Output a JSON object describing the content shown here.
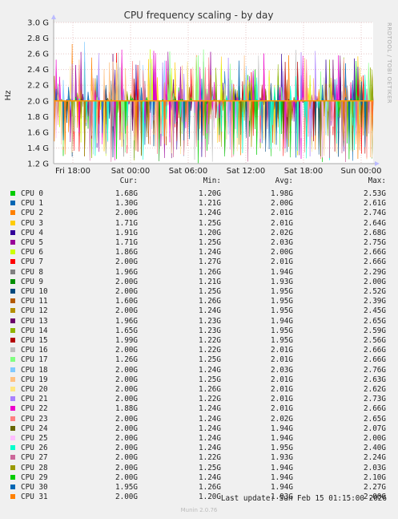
{
  "chart_data": {
    "type": "area",
    "title": "CPU frequency scaling - by day",
    "ylabel": "Hz",
    "yticks": [
      "3.0 G",
      "2.8 G",
      "2.6 G",
      "2.4 G",
      "2.2 G",
      "2.0 G",
      "1.8 G",
      "1.6 G",
      "1.4 G",
      "1.2 G"
    ],
    "ylim": [
      1.2,
      3.0
    ],
    "xticks": [
      "Fri 18:00",
      "Sat 00:00",
      "Sat 06:00",
      "Sat 12:00",
      "Sat 18:00",
      "Sun 00:00"
    ],
    "side_label": "RRDTOOL / TOBI OETIKER",
    "baseline": 2.0,
    "grid": true,
    "legend_header": {
      "cur": "Cur:",
      "min": "Min:",
      "avg": "Avg:",
      "max": "Max:"
    },
    "series": [
      {
        "name": "CPU 0",
        "color": "#00cc00",
        "cur": "1.68G",
        "min": "1.20G",
        "avg": "1.98G",
        "max": "2.53G"
      },
      {
        "name": "CPU 1",
        "color": "#0066b3",
        "cur": "1.30G",
        "min": "1.21G",
        "avg": "2.00G",
        "max": "2.61G"
      },
      {
        "name": "CPU 2",
        "color": "#ff8000",
        "cur": "2.00G",
        "min": "1.24G",
        "avg": "2.01G",
        "max": "2.74G"
      },
      {
        "name": "CPU 3",
        "color": "#ffcc00",
        "cur": "1.71G",
        "min": "1.25G",
        "avg": "2.01G",
        "max": "2.64G"
      },
      {
        "name": "CPU 4",
        "color": "#330099",
        "cur": "1.91G",
        "min": "1.20G",
        "avg": "2.02G",
        "max": "2.68G"
      },
      {
        "name": "CPU 5",
        "color": "#990099",
        "cur": "1.71G",
        "min": "1.25G",
        "avg": "2.03G",
        "max": "2.75G"
      },
      {
        "name": "CPU 6",
        "color": "#ccff00",
        "cur": "1.86G",
        "min": "1.24G",
        "avg": "2.00G",
        "max": "2.66G"
      },
      {
        "name": "CPU 7",
        "color": "#ff0000",
        "cur": "2.00G",
        "min": "1.27G",
        "avg": "2.01G",
        "max": "2.66G"
      },
      {
        "name": "CPU 8",
        "color": "#808080",
        "cur": "1.96G",
        "min": "1.26G",
        "avg": "1.94G",
        "max": "2.29G"
      },
      {
        "name": "CPU 9",
        "color": "#008f00",
        "cur": "2.00G",
        "min": "1.21G",
        "avg": "1.93G",
        "max": "2.00G"
      },
      {
        "name": "CPU 10",
        "color": "#00487d",
        "cur": "2.00G",
        "min": "1.25G",
        "avg": "1.95G",
        "max": "2.52G"
      },
      {
        "name": "CPU 11",
        "color": "#b35a00",
        "cur": "1.60G",
        "min": "1.26G",
        "avg": "1.95G",
        "max": "2.39G"
      },
      {
        "name": "CPU 12",
        "color": "#b38f00",
        "cur": "2.00G",
        "min": "1.24G",
        "avg": "1.95G",
        "max": "2.45G"
      },
      {
        "name": "CPU 13",
        "color": "#6b006b",
        "cur": "1.96G",
        "min": "1.23G",
        "avg": "1.94G",
        "max": "2.65G"
      },
      {
        "name": "CPU 14",
        "color": "#8fb300",
        "cur": "1.65G",
        "min": "1.23G",
        "avg": "1.95G",
        "max": "2.59G"
      },
      {
        "name": "CPU 15",
        "color": "#b30000",
        "cur": "1.99G",
        "min": "1.22G",
        "avg": "1.95G",
        "max": "2.56G"
      },
      {
        "name": "CPU 16",
        "color": "#bebebe",
        "cur": "2.00G",
        "min": "1.22G",
        "avg": "2.01G",
        "max": "2.66G"
      },
      {
        "name": "CPU 17",
        "color": "#80ff80",
        "cur": "1.26G",
        "min": "1.25G",
        "avg": "2.01G",
        "max": "2.66G"
      },
      {
        "name": "CPU 18",
        "color": "#80c9ff",
        "cur": "2.00G",
        "min": "1.24G",
        "avg": "2.03G",
        "max": "2.76G"
      },
      {
        "name": "CPU 19",
        "color": "#ffc080",
        "cur": "2.00G",
        "min": "1.25G",
        "avg": "2.01G",
        "max": "2.63G"
      },
      {
        "name": "CPU 20",
        "color": "#ffe680",
        "cur": "2.00G",
        "min": "1.26G",
        "avg": "2.01G",
        "max": "2.62G"
      },
      {
        "name": "CPU 21",
        "color": "#aa80ff",
        "cur": "2.00G",
        "min": "1.22G",
        "avg": "2.01G",
        "max": "2.73G"
      },
      {
        "name": "CPU 22",
        "color": "#ee00cc",
        "cur": "1.88G",
        "min": "1.24G",
        "avg": "2.01G",
        "max": "2.66G"
      },
      {
        "name": "CPU 23",
        "color": "#ff8080",
        "cur": "2.00G",
        "min": "1.24G",
        "avg": "2.02G",
        "max": "2.65G"
      },
      {
        "name": "CPU 24",
        "color": "#666600",
        "cur": "2.00G",
        "min": "1.24G",
        "avg": "1.94G",
        "max": "2.07G"
      },
      {
        "name": "CPU 25",
        "color": "#ffbfff",
        "cur": "2.00G",
        "min": "1.24G",
        "avg": "1.94G",
        "max": "2.00G"
      },
      {
        "name": "CPU 26",
        "color": "#00ffcc",
        "cur": "2.00G",
        "min": "1.24G",
        "avg": "1.95G",
        "max": "2.40G"
      },
      {
        "name": "CPU 27",
        "color": "#cc6699",
        "cur": "2.00G",
        "min": "1.22G",
        "avg": "1.93G",
        "max": "2.24G"
      },
      {
        "name": "CPU 28",
        "color": "#999900",
        "cur": "2.00G",
        "min": "1.25G",
        "avg": "1.94G",
        "max": "2.03G"
      },
      {
        "name": "CPU 29",
        "color": "#00cc00",
        "cur": "2.00G",
        "min": "1.24G",
        "avg": "1.94G",
        "max": "2.10G"
      },
      {
        "name": "CPU 30",
        "color": "#0066b3",
        "cur": "1.95G",
        "min": "1.26G",
        "avg": "1.94G",
        "max": "2.27G"
      },
      {
        "name": "CPU 31",
        "color": "#ff8000",
        "cur": "2.00G",
        "min": "1.20G",
        "avg": "1.93G",
        "max": "2.00G"
      }
    ]
  },
  "footer": {
    "last_update": "Last update: Sun Feb 15 01:15:00 2026",
    "munin_version": "Munin 2.0.76"
  }
}
